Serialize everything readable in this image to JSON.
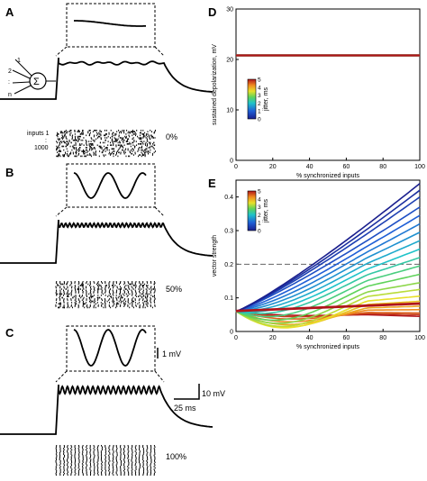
{
  "panels": {
    "A": {
      "letter": "A",
      "percent_label": "0%",
      "inputs_label": "inputs 1",
      "inputs_end": "1000",
      "neuron_labels": [
        "1",
        "2",
        ":",
        "n"
      ],
      "sum_symbol": "Σ",
      "dots": ":"
    },
    "B": {
      "letter": "B",
      "percent_label": "50%"
    },
    "C": {
      "letter": "C",
      "percent_label": "100%"
    },
    "D": {
      "letter": "D"
    },
    "E": {
      "letter": "E"
    }
  },
  "scale_bars": {
    "inset_mv": "1 mV",
    "trace_mv": "10 mV",
    "time": "25 ms"
  },
  "colors": {
    "trace": "#000000",
    "threshold_line": "#666666"
  },
  "chart_data": [
    {
      "type": "line",
      "panel": "D",
      "xlabel": "% synchronized inputs",
      "ylabel": "sustained depolarization, mV",
      "xlim": [
        0,
        100
      ],
      "ylim": [
        0,
        30
      ],
      "xticks": [
        0,
        20,
        40,
        60,
        80,
        100
      ],
      "yticks": [
        0,
        10,
        20,
        30
      ],
      "colorbar": {
        "label": "jitter, ms",
        "ticks": [
          "0",
          "1",
          "2",
          "3",
          "4",
          "5"
        ],
        "range": [
          0,
          5
        ]
      },
      "series": [
        {
          "jitter": 0,
          "x": [
            0,
            100
          ],
          "y": [
            20.8,
            20.8
          ]
        },
        {
          "jitter": 1,
          "x": [
            0,
            100
          ],
          "y": [
            20.8,
            20.8
          ]
        },
        {
          "jitter": 2,
          "x": [
            0,
            100
          ],
          "y": [
            20.8,
            20.8
          ]
        },
        {
          "jitter": 3,
          "x": [
            0,
            100
          ],
          "y": [
            20.8,
            20.8
          ]
        },
        {
          "jitter": 4,
          "x": [
            0,
            100
          ],
          "y": [
            20.8,
            20.8
          ]
        },
        {
          "jitter": 5,
          "x": [
            0,
            100
          ],
          "y": [
            20.8,
            20.8
          ]
        }
      ]
    },
    {
      "type": "line",
      "panel": "E",
      "xlabel": "% synchronized inputs",
      "ylabel": "vector strength",
      "xlim": [
        0,
        100
      ],
      "ylim": [
        0,
        0.45
      ],
      "xticks": [
        0,
        20,
        40,
        60,
        80,
        100
      ],
      "yticks": [
        0,
        0.1,
        0.2,
        0.3,
        0.4
      ],
      "threshold": 0.2,
      "colorbar": {
        "label": "jitter, ms",
        "ticks": [
          "0",
          "1",
          "2",
          "3",
          "4",
          "5"
        ],
        "range": [
          0,
          5
        ]
      },
      "series": [
        {
          "jitter": 0.0,
          "dip": 0.0,
          "end": 0.44
        },
        {
          "jitter": 0.25,
          "dip": 0.0,
          "end": 0.42
        },
        {
          "jitter": 0.5,
          "dip": 0.0,
          "end": 0.4
        },
        {
          "jitter": 0.75,
          "dip": 0.0,
          "end": 0.37
        },
        {
          "jitter": 1.0,
          "dip": 0.002,
          "end": 0.345
        },
        {
          "jitter": 1.25,
          "dip": 0.004,
          "end": 0.32
        },
        {
          "jitter": 1.5,
          "dip": 0.006,
          "end": 0.295
        },
        {
          "jitter": 1.75,
          "dip": 0.008,
          "end": 0.27
        },
        {
          "jitter": 2.0,
          "dip": 0.01,
          "end": 0.245
        },
        {
          "jitter": 2.25,
          "dip": 0.012,
          "end": 0.22
        },
        {
          "jitter": 2.5,
          "dip": 0.015,
          "end": 0.195
        },
        {
          "jitter": 2.75,
          "dip": 0.018,
          "end": 0.17
        },
        {
          "jitter": 3.0,
          "dip": 0.02,
          "end": 0.145
        },
        {
          "jitter": 3.25,
          "dip": 0.022,
          "end": 0.125
        },
        {
          "jitter": 3.5,
          "dip": 0.022,
          "end": 0.105
        },
        {
          "jitter": 3.75,
          "dip": 0.02,
          "end": 0.09
        },
        {
          "jitter": 4.0,
          "dip": 0.016,
          "end": 0.075
        },
        {
          "jitter": 4.25,
          "dip": 0.012,
          "end": 0.065
        },
        {
          "jitter": 4.5,
          "dip": 0.008,
          "end": 0.055
        },
        {
          "jitter": 4.75,
          "dip": 0.005,
          "end": 0.05
        },
        {
          "jitter": 5.0,
          "dip": 0.003,
          "end": 0.045
        }
      ],
      "start_value": 0.06,
      "flat_red_lines": [
        0.06,
        0.062
      ]
    }
  ]
}
